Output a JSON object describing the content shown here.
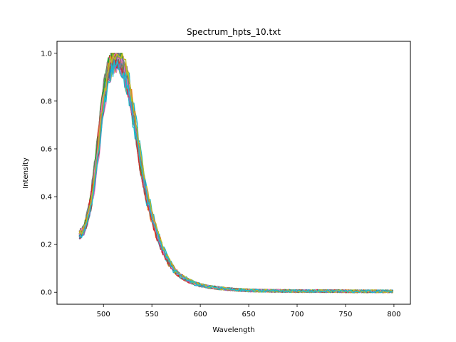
{
  "chart_data": {
    "type": "line",
    "title": "Spectrum_hpts_10.txt",
    "xlabel": "Wavelength",
    "ylabel": "Intensity",
    "xlim": [
      452,
      817
    ],
    "ylim": [
      -0.05,
      1.05
    ],
    "xticks": [
      500,
      550,
      600,
      650,
      700,
      750,
      800
    ],
    "yticks": [
      0.0,
      0.2,
      0.4,
      0.6,
      0.8,
      1.0
    ],
    "ytick_labels": [
      "0.0",
      "0.2",
      "0.4",
      "0.6",
      "0.8",
      "1.0"
    ],
    "grid": false,
    "legend": "none",
    "series_colors": [
      "#1f77b4",
      "#ff7f0e",
      "#2ca02c",
      "#d62728",
      "#9467bd",
      "#8c564b",
      "#e377c2",
      "#7f7f7f",
      "#bcbd22",
      "#17becf"
    ],
    "series_count": 30,
    "x": [
      475,
      480,
      485,
      490,
      495,
      500,
      505,
      510,
      515,
      520,
      525,
      530,
      535,
      540,
      545,
      550,
      555,
      560,
      565,
      570,
      575,
      580,
      585,
      590,
      595,
      600,
      610,
      620,
      630,
      640,
      650,
      660,
      680,
      700,
      720,
      740,
      760,
      780,
      800
    ],
    "y_representative": [
      0.24,
      0.26,
      0.33,
      0.45,
      0.62,
      0.8,
      0.92,
      0.97,
      0.98,
      0.95,
      0.88,
      0.77,
      0.64,
      0.5,
      0.4,
      0.32,
      0.25,
      0.19,
      0.15,
      0.11,
      0.085,
      0.068,
      0.055,
      0.045,
      0.037,
      0.03,
      0.022,
      0.017,
      0.013,
      0.01,
      0.008,
      0.007,
      0.006,
      0.005,
      0.005,
      0.005,
      0.004,
      0.004,
      0.004
    ]
  }
}
